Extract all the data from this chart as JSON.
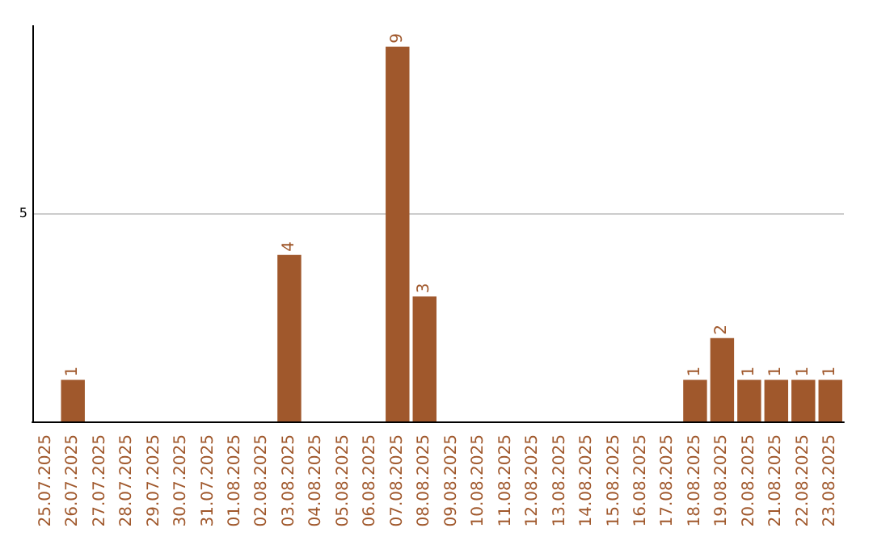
{
  "chart_data": {
    "type": "bar",
    "categories": [
      "25.07.2025",
      "26.07.2025",
      "27.07.2025",
      "28.07.2025",
      "29.07.2025",
      "30.07.2025",
      "31.07.2025",
      "01.08.2025",
      "02.08.2025",
      "03.08.2025",
      "04.08.2025",
      "05.08.2025",
      "06.08.2025",
      "07.08.2025",
      "08.08.2025",
      "09.08.2025",
      "10.08.2025",
      "11.08.2025",
      "12.08.2025",
      "13.08.2025",
      "14.08.2025",
      "15.08.2025",
      "16.08.2025",
      "17.08.2025",
      "18.08.2025",
      "19.08.2025",
      "20.08.2025",
      "21.08.2025",
      "22.08.2025",
      "23.08.2025"
    ],
    "values": [
      0,
      1,
      0,
      0,
      0,
      0,
      0,
      0,
      0,
      4,
      0,
      0,
      0,
      9,
      3,
      0,
      0,
      0,
      0,
      0,
      0,
      0,
      0,
      0,
      1,
      2,
      1,
      1,
      1,
      1
    ],
    "value_labels": [
      null,
      "1",
      null,
      null,
      null,
      null,
      null,
      null,
      null,
      "4",
      null,
      null,
      null,
      "9",
      "3",
      null,
      null,
      null,
      null,
      null,
      null,
      null,
      null,
      null,
      "1",
      "2",
      "1",
      "1",
      "1",
      "1"
    ],
    "color": "#a0582c",
    "ylim": [
      0,
      9.5
    ],
    "yticks": [
      5
    ],
    "grid": "y"
  }
}
